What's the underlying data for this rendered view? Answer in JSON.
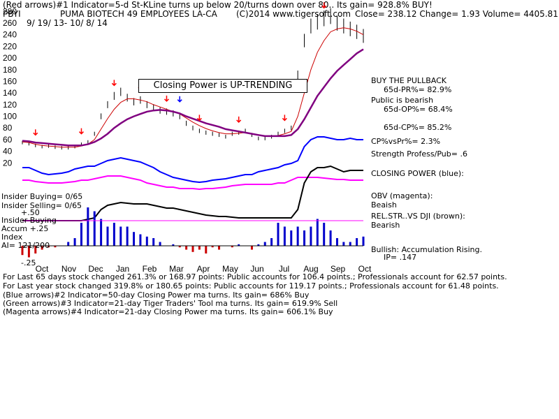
{
  "header": {
    "line1": "(Red arrows)#1 Indicator=5-d St-KLine turns up below 20/turns down over 80.. Its gain= 928.8% BUY!",
    "ticker": "PBYI",
    "name": "PUMA BIOTECH 49 EMPLOYEES LA-CA",
    "copyright": "(C)2014 www.tigersoft.com",
    "quote": "Close=  238.12  Change= 1.93 Volume= 4405.81",
    "date_range": "9/ 19/ 13-  10/ 8/ 14"
  },
  "annotation_box": "Closing Power is UP-TRENDING",
  "side_stats": {
    "buy_pullback": "BUY THE PULLBACK",
    "pr": "65d-PR%= 82.9%",
    "public_bearish": "Public is bearish",
    "op": "65d-OP%= 68.4%",
    "cp": "65d-CP%= 85.2%",
    "cpvspr": "CP%vsPr%=  2.3%",
    "strength": "Strength Profess/Pub= .6",
    "closing_power": "CLOSING POWER (blue):",
    "obv": "OBV (magenta):",
    "obv_state": "Beaish",
    "relstr": "REL.STR..VS DJI (brown):",
    "relstr_state": "Bearish",
    "bullish": "Bullish: Accumulation Rising.",
    "ip": "IP=  .147"
  },
  "left_labels": {
    "insider_buying": "Insider Buying= 0/65",
    "insider_selling": "Insider Selling= 0/65",
    "plus50": "+.50",
    "insider_buying2": "Insider Buying",
    "accum": "Accum  +.25",
    "index": "Index",
    "ai": "AI= 121/200",
    "minus25": "-.25"
  },
  "footer": {
    "line1": "For Last 65 days stock changed  261.3% or  168.97 points:  Public accounts for  106.4 points.;  Professionals account for  62.57 points.",
    "line2": "For Last year stock changed  319.8% or  180.65 points:  Public accounts for  119.17 points.;  Professionals account for  61.48 points.",
    "line3": "(Blue arrows)#2 Indicator=50-day Closing Power ma turns. Its gain= 686% Buy",
    "line4": "(Green arrows)#3 Indicator=21-day Tiger Traders' Tool ma turns. Its gain= 619.9% Sell",
    "line5": "(Magenta arrows)#4 Indicator=21-day Closing Power ma turns. Its gain= 606.1% Buy"
  },
  "colors": {
    "price": "#000000",
    "ma_purple": "#800080",
    "ma_red": "#cc0000",
    "closing_power": "#0000ff",
    "obv": "#ff00ff",
    "relstr": "#000000",
    "accum_pos": "#0000cc",
    "accum_neg": "#cc0000",
    "arrow_red": "#ff0000",
    "arrow_blue": "#0000ff",
    "gridline": "#000000"
  },
  "chart_data": {
    "type": "line",
    "ylim": [
      0,
      290
    ],
    "y_ticks": [
      20,
      40,
      60,
      80,
      100,
      120,
      140,
      160,
      180,
      200,
      220,
      240,
      260,
      280
    ],
    "x_months": [
      "Oct",
      "Nov",
      "Dec",
      "Jan",
      "Feb",
      "Mar",
      "Apr",
      "May",
      "Jun",
      "Jul",
      "Aug",
      "Sep",
      "Oct"
    ],
    "price_close": [
      55,
      53,
      50,
      48,
      49,
      47,
      46,
      46,
      48,
      52,
      56,
      70,
      100,
      120,
      135,
      142,
      132,
      125,
      128,
      120,
      115,
      110,
      108,
      105,
      100,
      88,
      80,
      75,
      72,
      70,
      68,
      65,
      70,
      72,
      75,
      68,
      62,
      62,
      65,
      70,
      75,
      80,
      170,
      230,
      255,
      262,
      268,
      272,
      260,
      255,
      250,
      245,
      238
    ],
    "ma_purple": [
      58,
      57,
      55,
      54,
      53,
      52,
      51,
      50,
      50,
      50,
      52,
      56,
      62,
      70,
      80,
      88,
      95,
      100,
      104,
      108,
      110,
      111,
      110,
      108,
      105,
      100,
      96,
      92,
      88,
      85,
      82,
      78,
      76,
      74,
      72,
      70,
      68,
      66,
      66,
      66,
      66,
      68,
      78,
      95,
      115,
      135,
      150,
      165,
      178,
      188,
      198,
      208,
      215
    ],
    "ma_red": [
      56,
      55,
      52,
      50,
      49,
      48,
      47,
      47,
      47,
      49,
      52,
      60,
      78,
      96,
      112,
      124,
      130,
      130,
      128,
      125,
      120,
      116,
      112,
      108,
      104,
      97,
      90,
      84,
      79,
      75,
      72,
      70,
      70,
      71,
      72,
      70,
      68,
      66,
      66,
      67,
      70,
      74,
      100,
      140,
      180,
      210,
      230,
      245,
      250,
      252,
      250,
      246,
      240
    ],
    "closing_power": [
      240,
      240,
      244,
      248,
      250,
      249,
      248,
      246,
      242,
      240,
      238,
      238,
      234,
      230,
      228,
      226,
      228,
      230,
      232,
      236,
      240,
      246,
      250,
      254,
      256,
      258,
      260,
      261,
      260,
      258,
      257,
      256,
      254,
      252,
      250,
      250,
      246,
      244,
      242,
      240,
      236,
      234,
      230,
      210,
      200,
      196,
      196,
      198,
      200,
      200,
      198,
      200,
      200
    ],
    "obv": [
      258,
      258,
      260,
      261,
      262,
      262,
      262,
      261,
      260,
      258,
      258,
      256,
      254,
      252,
      252,
      252,
      254,
      256,
      258,
      262,
      264,
      266,
      268,
      268,
      270,
      270,
      270,
      271,
      270,
      270,
      269,
      268,
      266,
      265,
      264,
      264,
      264,
      264,
      264,
      262,
      262,
      258,
      254,
      254,
      254,
      254,
      255,
      256,
      257,
      257,
      258,
      258,
      258
    ],
    "relstr": [
      316,
      316,
      316,
      316,
      316,
      316,
      316,
      316,
      316,
      316,
      314,
      312,
      300,
      294,
      292,
      290,
      291,
      292,
      292,
      292,
      294,
      296,
      298,
      298,
      300,
      302,
      304,
      306,
      308,
      309,
      310,
      310,
      311,
      312,
      312,
      312,
      312,
      312,
      312,
      312,
      312,
      312,
      300,
      262,
      246,
      240,
      240,
      238,
      242,
      246,
      244,
      244,
      244
    ],
    "accum_index": [
      -0.12,
      -0.15,
      -0.1,
      -0.05,
      -0.02,
      -0.02,
      0.0,
      0.05,
      0.1,
      0.3,
      0.5,
      0.45,
      0.35,
      0.25,
      0.3,
      0.25,
      0.25,
      0.18,
      0.15,
      0.12,
      0.1,
      0.05,
      0.0,
      0.02,
      -0.02,
      -0.05,
      -0.08,
      -0.05,
      -0.1,
      -0.02,
      -0.05,
      0.0,
      -0.02,
      0.02,
      0.0,
      -0.05,
      0.02,
      0.05,
      0.1,
      0.3,
      0.25,
      0.2,
      0.25,
      0.2,
      0.25,
      0.35,
      0.3,
      0.2,
      0.1,
      0.05,
      0.05,
      0.1,
      0.12
    ]
  }
}
